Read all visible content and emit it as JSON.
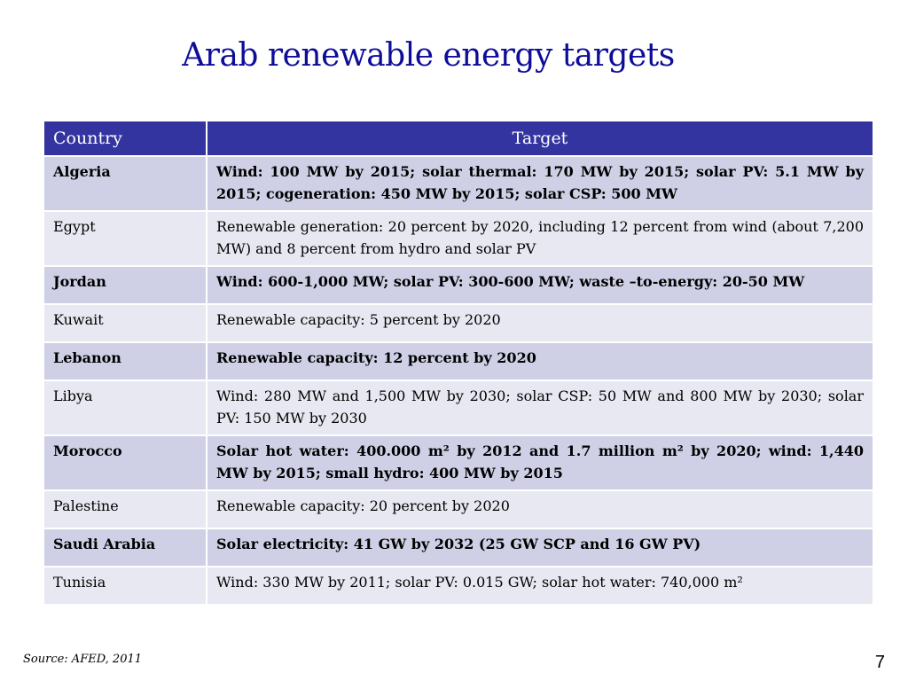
{
  "slide": {
    "title": "Arab renewable energy targets",
    "source": "Source:  AFED, 2011",
    "page_number": "7"
  },
  "table": {
    "headers": [
      "Country",
      "Target"
    ],
    "rows": [
      {
        "country": "Algeria",
        "target": "Wind: 100 MW by 2015; solar thermal: 170 MW by 2015; solar PV: 5.1 MW by 2015; cogeneration: 450 MW by 2015; solar CSP: 500 MW"
      },
      {
        "country": "Egypt",
        "target": "Renewable generation: 20 percent by 2020, including 12 percent from wind (about 7,200 MW) and 8 percent from hydro and solar PV"
      },
      {
        "country": "Jordan",
        "target": "Wind: 600-1,000 MW; solar PV: 300-600 MW; waste –to-energy: 20-50 MW"
      },
      {
        "country": "Kuwait",
        "target": "Renewable capacity: 5 percent by 2020"
      },
      {
        "country": "Lebanon",
        "target": "Renewable capacity: 12 percent by 2020"
      },
      {
        "country": "Libya",
        "target": "Wind: 280 MW and 1,500 MW by 2030; solar CSP: 50 MW and 800 MW by 2030; solar PV: 150 MW by 2030"
      },
      {
        "country": "Morocco",
        "target": "Solar hot water: 400.000 m²  by 2012 and 1.7 million m²  by 2020; wind: 1,440 MW by 2015; small hydro: 400 MW by 2015"
      },
      {
        "country": "Palestine",
        "target": "Renewable capacity: 20 percent by 2020"
      },
      {
        "country": "Saudi Arabia",
        "target": "Solar electricity: 41 GW  by 2032 (25 GW SCP and 16 GW PV)"
      },
      {
        "country": "Tunisia",
        "target": "Wind: 330 MW by 2011; solar PV: 0.015 GW; solar hot water: 740,000 m²"
      }
    ]
  }
}
